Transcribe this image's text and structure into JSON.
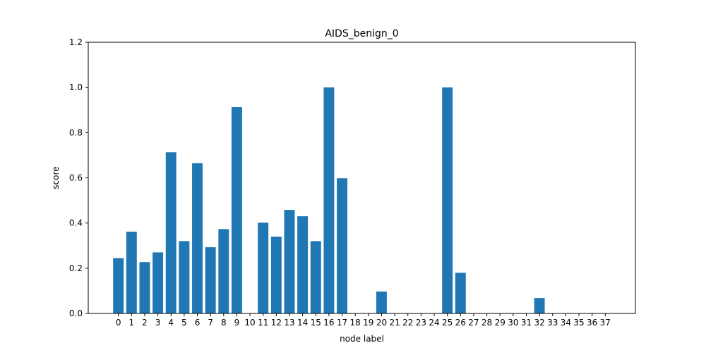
{
  "chart_data": {
    "type": "bar",
    "title": "AIDS_benign_0",
    "xlabel": "node label",
    "ylabel": "score",
    "categories": [
      "0",
      "1",
      "2",
      "3",
      "4",
      "5",
      "6",
      "7",
      "8",
      "9",
      "10",
      "11",
      "12",
      "13",
      "14",
      "15",
      "16",
      "17",
      "18",
      "19",
      "20",
      "21",
      "22",
      "23",
      "24",
      "25",
      "26",
      "27",
      "28",
      "29",
      "30",
      "31",
      "32",
      "33",
      "34",
      "35",
      "36",
      "37"
    ],
    "values": [
      0.245,
      0.362,
      0.227,
      0.27,
      0.713,
      0.32,
      0.665,
      0.293,
      0.373,
      0.913,
      0.0,
      0.402,
      0.34,
      0.458,
      0.43,
      0.32,
      1.0,
      0.598,
      0.0,
      0.0,
      0.097,
      0.0,
      0.0,
      0.0,
      0.0,
      1.0,
      0.18,
      0.0,
      0.0,
      0.0,
      0.0,
      0.0,
      0.068,
      0.0,
      0.0,
      0.0,
      0.0,
      0.0
    ],
    "ylim": [
      0,
      1.2
    ],
    "yticks": [
      "0.0",
      "0.2",
      "0.4",
      "0.6",
      "0.8",
      "1.0",
      "1.2"
    ],
    "grid": false,
    "bar_color": "#1f77b4"
  }
}
